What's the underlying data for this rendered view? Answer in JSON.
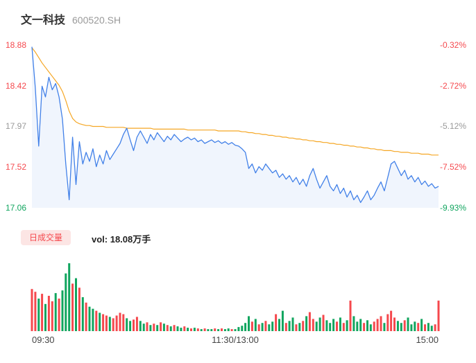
{
  "header": {
    "stock_name": "文一科技",
    "stock_code": "600520.SH"
  },
  "palette": {
    "red": "#f5484d",
    "green": "#10a55e",
    "gray": "#999999",
    "price_line": "#4180e8",
    "avg_line": "#f5a623",
    "area_fill": "rgba(65,128,232,0.08)",
    "tab_bg": "#fce5e4",
    "title_color": "#333333",
    "code_color": "#999999",
    "axis_color": "#444444"
  },
  "volume": {
    "tab_label": "日成交量",
    "readout": "vol: 18.08万手"
  },
  "chart_data": {
    "type": "line",
    "x_ticks": [
      "09:30",
      "11:30/13:00",
      "15:00"
    ],
    "y_range": [
      17.06,
      18.88
    ],
    "y_axis": [
      {
        "price": "18.88",
        "pct": "-0.32%",
        "tone": "red"
      },
      {
        "price": "18.42",
        "pct": "-2.72%",
        "tone": "red"
      },
      {
        "price": "17.97",
        "pct": "-5.12%",
        "tone": "gray"
      },
      {
        "price": "17.52",
        "pct": "-7.52%",
        "tone": "red"
      },
      {
        "price": "17.06",
        "pct": "-9.93%",
        "tone": "green"
      }
    ],
    "series": [
      {
        "name": "price",
        "values": [
          18.86,
          18.4,
          17.75,
          18.42,
          18.3,
          18.52,
          18.38,
          18.45,
          18.3,
          18.05,
          17.55,
          17.15,
          17.85,
          17.32,
          17.8,
          17.55,
          17.68,
          17.58,
          17.72,
          17.52,
          17.65,
          17.55,
          17.7,
          17.6,
          17.66,
          17.72,
          17.78,
          17.88,
          17.95,
          17.82,
          17.7,
          17.85,
          17.92,
          17.85,
          17.78,
          17.88,
          17.82,
          17.9,
          17.85,
          17.8,
          17.86,
          17.82,
          17.88,
          17.84,
          17.8,
          17.83,
          17.85,
          17.82,
          17.84,
          17.8,
          17.82,
          17.78,
          17.8,
          17.82,
          17.79,
          17.81,
          17.78,
          17.8,
          17.77,
          17.79,
          17.76,
          17.75,
          17.72,
          17.68,
          17.5,
          17.55,
          17.45,
          17.52,
          17.48,
          17.55,
          17.5,
          17.45,
          17.48,
          17.4,
          17.44,
          17.38,
          17.42,
          17.35,
          17.4,
          17.32,
          17.38,
          17.3,
          17.42,
          17.5,
          17.38,
          17.28,
          17.35,
          17.42,
          17.3,
          17.25,
          17.32,
          17.22,
          17.28,
          17.18,
          17.25,
          17.15,
          17.2,
          17.12,
          17.18,
          17.25,
          17.15,
          17.2,
          17.28,
          17.35,
          17.25,
          17.4,
          17.55,
          17.58,
          17.5,
          17.42,
          17.48,
          17.38,
          17.42,
          17.35,
          17.4,
          17.32,
          17.36,
          17.3,
          17.33,
          17.28,
          17.3
        ]
      },
      {
        "name": "avg",
        "values": [
          18.85,
          18.8,
          18.74,
          18.68,
          18.63,
          18.58,
          18.53,
          18.48,
          18.43,
          18.36,
          18.26,
          18.14,
          18.06,
          18.02,
          18.0,
          17.99,
          17.98,
          17.98,
          17.97,
          17.97,
          17.97,
          17.97,
          17.96,
          17.96,
          17.96,
          17.96,
          17.96,
          17.96,
          17.95,
          17.95,
          17.95,
          17.95,
          17.95,
          17.95,
          17.95,
          17.95,
          17.94,
          17.94,
          17.94,
          17.94,
          17.94,
          17.94,
          17.94,
          17.94,
          17.94,
          17.94,
          17.93,
          17.93,
          17.93,
          17.93,
          17.93,
          17.93,
          17.93,
          17.93,
          17.93,
          17.92,
          17.92,
          17.92,
          17.92,
          17.92,
          17.92,
          17.92,
          17.91,
          17.91,
          17.9,
          17.9,
          17.89,
          17.89,
          17.88,
          17.88,
          17.87,
          17.87,
          17.86,
          17.86,
          17.85,
          17.85,
          17.84,
          17.84,
          17.83,
          17.83,
          17.82,
          17.82,
          17.81,
          17.81,
          17.8,
          17.8,
          17.79,
          17.79,
          17.78,
          17.78,
          17.77,
          17.77,
          17.76,
          17.76,
          17.75,
          17.75,
          17.74,
          17.74,
          17.73,
          17.73,
          17.72,
          17.72,
          17.71,
          17.71,
          17.7,
          17.7,
          17.7,
          17.69,
          17.69,
          17.68,
          17.68,
          17.68,
          17.67,
          17.67,
          17.67,
          17.66,
          17.66,
          17.66,
          17.65,
          17.65,
          17.65
        ]
      }
    ],
    "volume_bars": [
      [
        0.62,
        "r"
      ],
      [
        0.58,
        "r"
      ],
      [
        0.48,
        "g"
      ],
      [
        0.55,
        "r"
      ],
      [
        0.4,
        "g"
      ],
      [
        0.52,
        "r"
      ],
      [
        0.44,
        "r"
      ],
      [
        0.56,
        "g"
      ],
      [
        0.48,
        "r"
      ],
      [
        0.6,
        "g"
      ],
      [
        0.85,
        "g"
      ],
      [
        1.0,
        "g"
      ],
      [
        0.7,
        "r"
      ],
      [
        0.78,
        "g"
      ],
      [
        0.64,
        "r"
      ],
      [
        0.5,
        "g"
      ],
      [
        0.42,
        "r"
      ],
      [
        0.36,
        "g"
      ],
      [
        0.33,
        "g"
      ],
      [
        0.3,
        "r"
      ],
      [
        0.27,
        "g"
      ],
      [
        0.25,
        "r"
      ],
      [
        0.23,
        "r"
      ],
      [
        0.21,
        "g"
      ],
      [
        0.19,
        "r"
      ],
      [
        0.23,
        "r"
      ],
      [
        0.27,
        "r"
      ],
      [
        0.25,
        "r"
      ],
      [
        0.19,
        "g"
      ],
      [
        0.15,
        "g"
      ],
      [
        0.17,
        "r"
      ],
      [
        0.21,
        "r"
      ],
      [
        0.15,
        "g"
      ],
      [
        0.11,
        "g"
      ],
      [
        0.13,
        "r"
      ],
      [
        0.09,
        "g"
      ],
      [
        0.11,
        "r"
      ],
      [
        0.09,
        "g"
      ],
      [
        0.13,
        "r"
      ],
      [
        0.11,
        "g"
      ],
      [
        0.09,
        "r"
      ],
      [
        0.07,
        "g"
      ],
      [
        0.09,
        "r"
      ],
      [
        0.07,
        "g"
      ],
      [
        0.05,
        "g"
      ],
      [
        0.07,
        "r"
      ],
      [
        0.05,
        "g"
      ],
      [
        0.04,
        "r"
      ],
      [
        0.05,
        "g"
      ],
      [
        0.04,
        "r"
      ],
      [
        0.03,
        "g"
      ],
      [
        0.04,
        "r"
      ],
      [
        0.03,
        "g"
      ],
      [
        0.03,
        "g"
      ],
      [
        0.04,
        "r"
      ],
      [
        0.03,
        "g"
      ],
      [
        0.04,
        "r"
      ],
      [
        0.03,
        "g"
      ],
      [
        0.04,
        "g"
      ],
      [
        0.03,
        "r"
      ],
      [
        0.03,
        "g"
      ],
      [
        0.06,
        "g"
      ],
      [
        0.08,
        "g"
      ],
      [
        0.12,
        "g"
      ],
      [
        0.22,
        "g"
      ],
      [
        0.14,
        "r"
      ],
      [
        0.18,
        "g"
      ],
      [
        0.1,
        "r"
      ],
      [
        0.12,
        "g"
      ],
      [
        0.15,
        "r"
      ],
      [
        0.1,
        "g"
      ],
      [
        0.14,
        "g"
      ],
      [
        0.25,
        "r"
      ],
      [
        0.18,
        "g"
      ],
      [
        0.3,
        "g"
      ],
      [
        0.12,
        "r"
      ],
      [
        0.15,
        "g"
      ],
      [
        0.2,
        "g"
      ],
      [
        0.1,
        "r"
      ],
      [
        0.12,
        "g"
      ],
      [
        0.15,
        "r"
      ],
      [
        0.22,
        "g"
      ],
      [
        0.28,
        "r"
      ],
      [
        0.18,
        "r"
      ],
      [
        0.14,
        "g"
      ],
      [
        0.2,
        "g"
      ],
      [
        0.24,
        "r"
      ],
      [
        0.16,
        "g"
      ],
      [
        0.12,
        "g"
      ],
      [
        0.18,
        "g"
      ],
      [
        0.14,
        "r"
      ],
      [
        0.2,
        "g"
      ],
      [
        0.12,
        "r"
      ],
      [
        0.16,
        "g"
      ],
      [
        0.45,
        "r"
      ],
      [
        0.22,
        "g"
      ],
      [
        0.14,
        "g"
      ],
      [
        0.18,
        "g"
      ],
      [
        0.12,
        "r"
      ],
      [
        0.16,
        "g"
      ],
      [
        0.1,
        "g"
      ],
      [
        0.14,
        "r"
      ],
      [
        0.18,
        "r"
      ],
      [
        0.22,
        "r"
      ],
      [
        0.12,
        "g"
      ],
      [
        0.25,
        "r"
      ],
      [
        0.3,
        "r"
      ],
      [
        0.2,
        "r"
      ],
      [
        0.15,
        "g"
      ],
      [
        0.12,
        "g"
      ],
      [
        0.16,
        "r"
      ],
      [
        0.2,
        "g"
      ],
      [
        0.1,
        "g"
      ],
      [
        0.14,
        "g"
      ],
      [
        0.12,
        "r"
      ],
      [
        0.18,
        "g"
      ],
      [
        0.1,
        "r"
      ],
      [
        0.12,
        "g"
      ],
      [
        0.08,
        "g"
      ],
      [
        0.1,
        "r"
      ],
      [
        0.45,
        "r"
      ]
    ]
  }
}
